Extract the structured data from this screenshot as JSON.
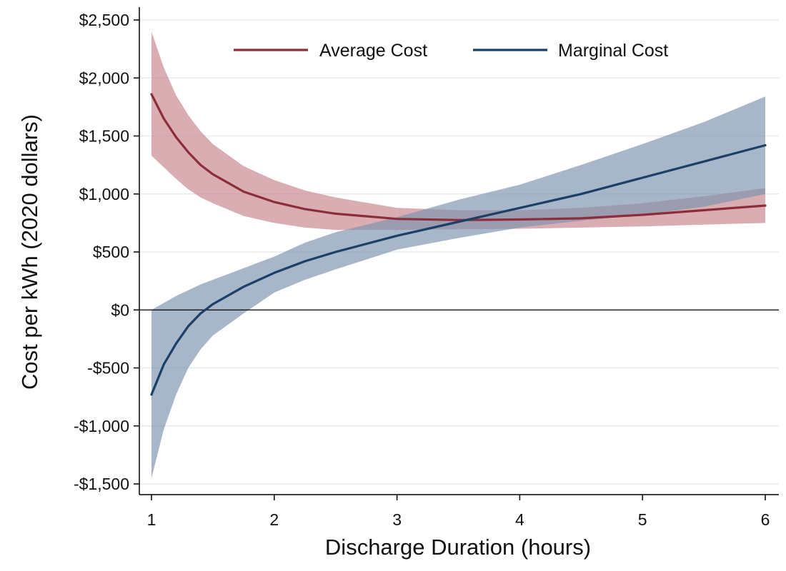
{
  "chart_data": {
    "type": "line",
    "xlabel": "Discharge Duration (hours)",
    "ylabel": "Cost per kWh (2020 dollars)",
    "xlim": [
      1,
      6
    ],
    "ylim": [
      -1500,
      2500
    ],
    "x_ticks": [
      1,
      2,
      3,
      4,
      5,
      6
    ],
    "x_tick_labels": [
      "1",
      "2",
      "3",
      "4",
      "5",
      "6"
    ],
    "y_ticks": [
      -1500,
      -1000,
      -500,
      0,
      500,
      1000,
      1500,
      2000,
      2500
    ],
    "y_tick_labels": [
      "-$1,500",
      "-$1,000",
      "-$500",
      "$0",
      "$500",
      "$1,000",
      "$1,500",
      "$2,000",
      "$2,500"
    ],
    "grid": "horizontal",
    "zero_line": true,
    "legend_position": "top",
    "x": [
      1,
      1.1,
      1.2,
      1.3,
      1.4,
      1.5,
      1.75,
      2,
      2.25,
      2.5,
      3,
      3.5,
      4,
      4.5,
      5,
      5.5,
      6
    ],
    "series": [
      {
        "name": "Average Cost",
        "color": "#8B2E3A",
        "band_color": "#C9868E",
        "values": [
          1860,
          1650,
          1490,
          1360,
          1250,
          1170,
          1020,
          930,
          870,
          830,
          785,
          775,
          780,
          790,
          820,
          860,
          900
        ],
        "lower": [
          1330,
          1230,
          1130,
          1040,
          970,
          920,
          810,
          750,
          710,
          690,
          690,
          695,
          700,
          710,
          720,
          735,
          750
        ],
        "upper": [
          2400,
          2090,
          1850,
          1680,
          1540,
          1430,
          1240,
          1120,
          1030,
          970,
          880,
          860,
          860,
          880,
          920,
          980,
          1050
        ]
      },
      {
        "name": "Marginal Cost",
        "color": "#1B3F66",
        "band_color": "#7D94AE",
        "values": [
          -730,
          -470,
          -290,
          -140,
          -30,
          50,
          200,
          320,
          420,
          500,
          640,
          760,
          880,
          1000,
          1140,
          1280,
          1420
        ],
        "lower": [
          -1450,
          -1030,
          -730,
          -500,
          -340,
          -220,
          -30,
          150,
          260,
          350,
          520,
          620,
          710,
          770,
          820,
          890,
          1000
        ],
        "upper": [
          0,
          60,
          120,
          170,
          220,
          260,
          360,
          460,
          580,
          670,
          800,
          950,
          1080,
          1250,
          1430,
          1620,
          1840
        ]
      }
    ]
  }
}
